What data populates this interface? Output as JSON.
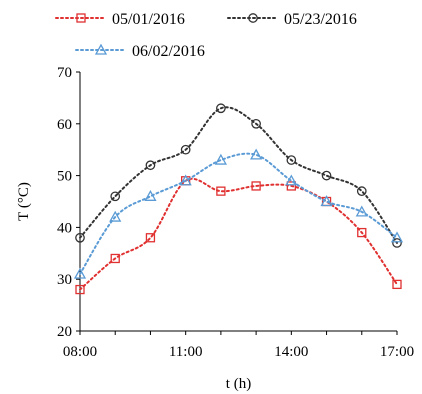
{
  "chart_data": {
    "type": "line",
    "x": [
      "08:00",
      "09:00",
      "10:00",
      "11:00",
      "12:00",
      "13:00",
      "14:00",
      "15:00",
      "16:00",
      "17:00"
    ],
    "xticks": [
      "08:00",
      "11:00",
      "14:00",
      "17:00"
    ],
    "xlabel": "t (h)",
    "ylabel": "T (°C)",
    "ylim": [
      20,
      70
    ],
    "yticks": [
      20,
      30,
      40,
      50,
      60,
      70
    ],
    "grid": false,
    "legend_position": "top",
    "series": [
      {
        "name": "05/01/2016",
        "color": "#e03030",
        "marker": "square",
        "values": [
          28,
          34,
          38,
          49,
          47,
          48,
          48,
          45,
          39,
          29
        ]
      },
      {
        "name": "05/23/2016",
        "color": "#333333",
        "marker": "circle",
        "values": [
          38,
          46,
          52,
          55,
          63,
          60,
          53,
          50,
          47,
          37
        ]
      },
      {
        "name": "06/02/2016",
        "color": "#5b9bd5",
        "marker": "triangle",
        "values": [
          31,
          42,
          46,
          49,
          53,
          54,
          49,
          45,
          43,
          38
        ]
      }
    ]
  }
}
